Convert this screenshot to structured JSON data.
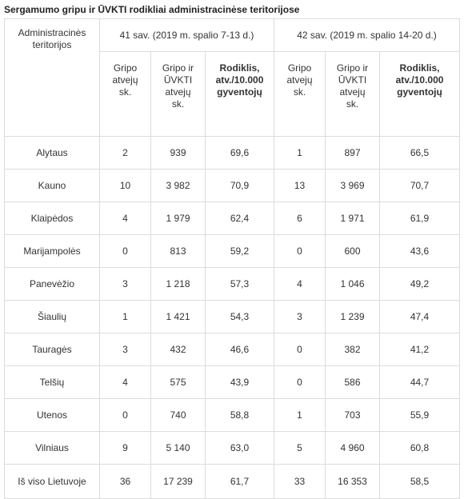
{
  "title": "Sergamumo gripu ir ŪVKTI rodikliai administracinėse teritorijose",
  "header": {
    "admin_line1": "Administracinės",
    "admin_line2": "teritorijos",
    "week1": "41 sav. (2019 m. spalio 7-13 d.)",
    "week2": "42 sav. (2019 m. spalio 14-20 d.)",
    "sub": {
      "flu_l1": "Gripo",
      "flu_l2": "atvejų",
      "flu_l3": "sk.",
      "fluari_l1": "Gripo ir",
      "fluari_l2": "ŪVKTI",
      "fluari_l3": "atvejų",
      "fluari_l4": "sk.",
      "rate_l1": "Rodiklis,",
      "rate_l2": "atv./10.000",
      "rate_l3": "gyventojų"
    }
  },
  "rows": [
    {
      "name": "Alytaus",
      "w41": [
        "2",
        "939",
        "69,6"
      ],
      "w42": [
        "1",
        "897",
        "66,5"
      ]
    },
    {
      "name": "Kauno",
      "w41": [
        "10",
        "3 982",
        "70,9"
      ],
      "w42": [
        "13",
        "3 969",
        "70,7"
      ]
    },
    {
      "name": "Klaipėdos",
      "w41": [
        "4",
        "1 979",
        "62,4"
      ],
      "w42": [
        "6",
        "1 971",
        "61,9"
      ]
    },
    {
      "name": "Marijampolės",
      "w41": [
        "0",
        "813",
        "59,2"
      ],
      "w42": [
        "0",
        "600",
        "43,6"
      ]
    },
    {
      "name": "Panevėžio",
      "w41": [
        "3",
        "1 218",
        "57,3"
      ],
      "w42": [
        "4",
        "1 046",
        "49,2"
      ]
    },
    {
      "name": "Šiaulių",
      "w41": [
        "1",
        "1 421",
        "54,3"
      ],
      "w42": [
        "3",
        "1 239",
        "47,4"
      ]
    },
    {
      "name": "Tauragės",
      "w41": [
        "3",
        "432",
        "46,6"
      ],
      "w42": [
        "0",
        "382",
        "41,2"
      ]
    },
    {
      "name": "Telšių",
      "w41": [
        "4",
        "575",
        "43,9"
      ],
      "w42": [
        "0",
        "586",
        "44,7"
      ]
    },
    {
      "name": "Utenos",
      "w41": [
        "0",
        "740",
        "58,8"
      ],
      "w42": [
        "1",
        "703",
        "55,9"
      ]
    },
    {
      "name": "Vilniaus",
      "w41": [
        "9",
        "5 140",
        "63,0"
      ],
      "w42": [
        "5",
        "4 960",
        "60,8"
      ]
    }
  ],
  "total": {
    "name": "Iš viso Lietuvoje",
    "w41": [
      "36",
      "17 239",
      "61,7"
    ],
    "w42": [
      "33",
      "16 353",
      "58,5"
    ]
  }
}
